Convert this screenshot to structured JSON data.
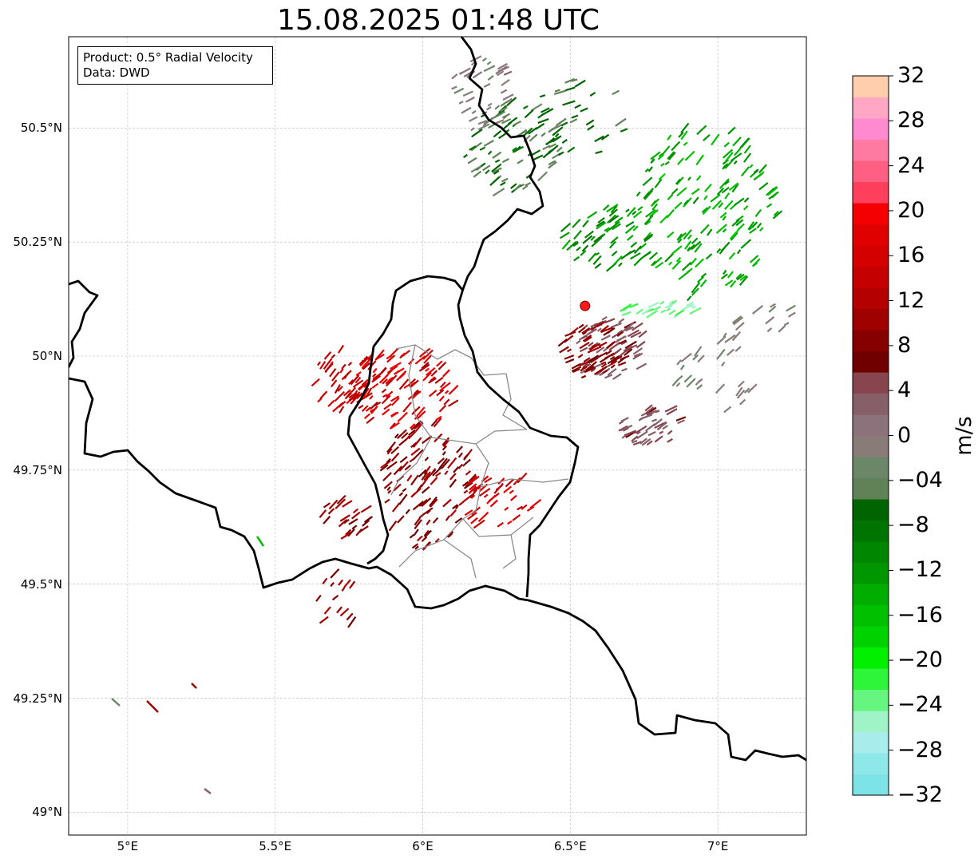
{
  "title": "15.08.2025 01:48 UTC",
  "info_box": {
    "product": "Product: 0.5° Radial Velocity",
    "source": "Data: DWD"
  },
  "map": {
    "lon_range": [
      4.8,
      7.3
    ],
    "lat_range": [
      48.95,
      50.7
    ],
    "latitude_labels": [
      {
        "value": 50.5,
        "text": "50.5°N"
      },
      {
        "value": 50.25,
        "text": "50.25°N"
      },
      {
        "value": 50.0,
        "text": "50°N"
      },
      {
        "value": 49.75,
        "text": "49.75°N"
      },
      {
        "value": 49.5,
        "text": "49.5°N"
      },
      {
        "value": 49.25,
        "text": "49.25°N"
      },
      {
        "value": 49.0,
        "text": "49°N"
      }
    ],
    "longitude_labels": [
      {
        "value": 5.0,
        "text": "5°E"
      },
      {
        "value": 5.5,
        "text": "5.5°E"
      },
      {
        "value": 6.0,
        "text": "6°E"
      },
      {
        "value": 6.5,
        "text": "6.5°E"
      },
      {
        "value": 7.0,
        "text": "7°E"
      }
    ],
    "gridlines": true,
    "radar_site": {
      "lon": 6.55,
      "lat": 50.11,
      "color": "#ff1a1a"
    }
  },
  "colorbar": {
    "label": "m/s",
    "min": -32,
    "max": 32,
    "tick_labels": [
      "32",
      "28",
      "24",
      "20",
      "16",
      "12",
      "8",
      "4",
      "0",
      "−04",
      "−8",
      "−12",
      "−16",
      "−20",
      "−24",
      "−28",
      "−32"
    ],
    "tick_values": [
      32,
      28,
      24,
      20,
      16,
      12,
      8,
      4,
      0,
      -4,
      -8,
      -12,
      -16,
      -20,
      -24,
      -28,
      -32
    ],
    "colors_bottom_to_top": [
      "#7ee3e6",
      "#8ee8ea",
      "#a8ecec",
      "#9ff3c7",
      "#66f57e",
      "#2ff53a",
      "#00f000",
      "#00d200",
      "#00c000",
      "#00ae00",
      "#009600",
      "#008600",
      "#007400",
      "#006400",
      "#5f8257",
      "#6c8768",
      "#897c78",
      "#8c727a",
      "#875f69",
      "#87464f",
      "#700000",
      "#870000",
      "#9f0000",
      "#b40000",
      "#c40000",
      "#d40000",
      "#e00000",
      "#f40000",
      "#ff3f5c",
      "#ff5f82",
      "#ff7aa0",
      "#ff8ad0",
      "#ffa7c4",
      "#ffcead"
    ]
  }
}
